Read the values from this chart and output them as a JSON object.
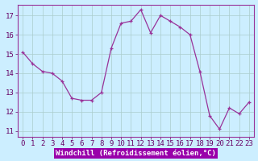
{
  "x": [
    0,
    1,
    2,
    3,
    4,
    5,
    6,
    7,
    8,
    9,
    10,
    11,
    12,
    13,
    14,
    15,
    16,
    17,
    18,
    19,
    20,
    21,
    22,
    23
  ],
  "y": [
    15.1,
    14.5,
    14.1,
    14.0,
    13.6,
    12.7,
    12.6,
    12.6,
    13.0,
    15.3,
    16.6,
    16.7,
    17.3,
    16.1,
    17.0,
    16.7,
    16.4,
    16.0,
    14.1,
    11.8,
    11.1,
    12.2,
    11.9,
    12.5
  ],
  "line_color": "#993399",
  "marker": "+",
  "marker_size": 3,
  "bg_color": "#cceeff",
  "grid_color": "#aacccc",
  "xlabel": "Windchill (Refroidissement éolien,°C)",
  "xlabel_fontsize": 6.5,
  "tick_fontsize": 6.5,
  "ylim": [
    10.7,
    17.55
  ],
  "xlim": [
    -0.5,
    23.5
  ],
  "yticks": [
    11,
    12,
    13,
    14,
    15,
    16,
    17
  ],
  "xticks": [
    0,
    1,
    2,
    3,
    4,
    5,
    6,
    7,
    8,
    9,
    10,
    11,
    12,
    13,
    14,
    15,
    16,
    17,
    18,
    19,
    20,
    21,
    22,
    23
  ],
  "spine_color": "#993399",
  "text_color": "#660066",
  "label_bg_color": "#9900aa"
}
